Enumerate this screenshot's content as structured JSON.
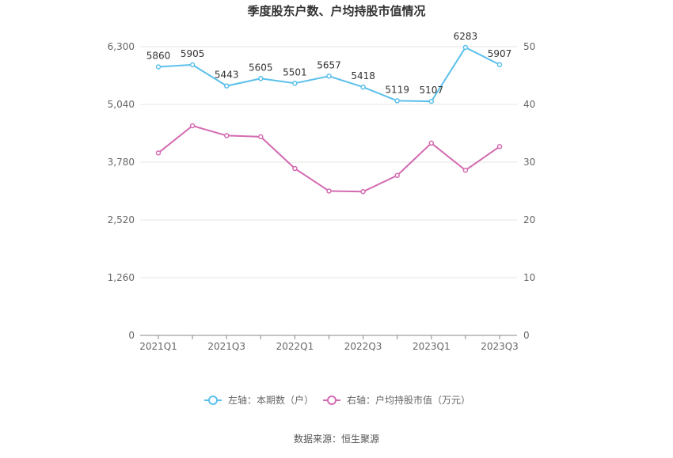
{
  "chart_data": {
    "type": "line",
    "title": "季度股东户数、户均持股市值情况",
    "categories": [
      "2021Q1",
      "2021Q2",
      "2021Q3",
      "2021Q4",
      "2022Q1",
      "2022Q2",
      "2022Q3",
      "2022Q4",
      "2023Q1",
      "2023Q2",
      "2023Q3"
    ],
    "x_tick_labels": [
      "2021Q1",
      "2021Q3",
      "2022Q1",
      "2022Q3",
      "2023Q1",
      "2023Q3"
    ],
    "y_left": {
      "ticks": [
        "0",
        "1,260",
        "2,520",
        "3,780",
        "5,040",
        "6,300"
      ],
      "min": 0,
      "max": 6300
    },
    "y_right": {
      "ticks": [
        "0",
        "10",
        "20",
        "30",
        "40",
        "50"
      ],
      "min": 0,
      "max": 50
    },
    "series": [
      {
        "name": "左轴：本期数（户）",
        "axis": "left",
        "color": "#5bc0eb",
        "values": [
          5860,
          5905,
          5443,
          5605,
          5501,
          5657,
          5418,
          5119,
          5107,
          6283,
          5907
        ],
        "labels": [
          "5860",
          "5905",
          "5443",
          "5605",
          "5501",
          "5657",
          "5418",
          "5119",
          "5107",
          "6283",
          "5907"
        ]
      },
      {
        "name": "右轴：户均持股市值（万元）",
        "axis": "right",
        "color": "#d36bb1",
        "values": [
          31.6,
          36.3,
          34.6,
          34.4,
          28.9,
          25.0,
          24.9,
          27.7,
          33.3,
          28.6,
          32.7
        ]
      }
    ],
    "source": "数据来源：恒生聚源",
    "grid": true,
    "legend_position": "bottom"
  }
}
